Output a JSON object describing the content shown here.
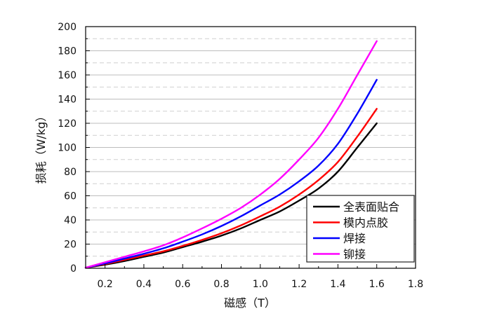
{
  "chart_data": {
    "type": "line",
    "title": "",
    "xlabel": "磁感（T）",
    "ylabel": "损耗（W/kg）",
    "xlim": [
      0.1,
      1.8
    ],
    "ylim": [
      0,
      200
    ],
    "x_ticks": [
      "0.2",
      "0.4",
      "0.6",
      "0.8",
      "1.0",
      "1.2",
      "1.4",
      "1.6",
      "1.8"
    ],
    "y_ticks": [
      "0",
      "20",
      "40",
      "60",
      "80",
      "100",
      "120",
      "140",
      "160",
      "180",
      "200"
    ],
    "grid": {
      "horizontal": true,
      "solid_major_every": 20,
      "dashed_minor_between": true,
      "vertical": false
    },
    "legend_position": "bottom-right",
    "series": [
      {
        "name": "全表面贴合",
        "color": "#000000",
        "x": [
          0.1,
          0.2,
          0.3,
          0.4,
          0.5,
          0.6,
          0.7,
          0.8,
          0.9,
          1.0,
          1.1,
          1.2,
          1.3,
          1.4,
          1.5,
          1.6
        ],
        "y": [
          0.5,
          3,
          6,
          9.5,
          13,
          17.5,
          22,
          27,
          33,
          40,
          47,
          56,
          66,
          80,
          100,
          120
        ]
      },
      {
        "name": "模内点胶",
        "color": "#ff0000",
        "x": [
          0.1,
          0.2,
          0.3,
          0.4,
          0.5,
          0.6,
          0.7,
          0.8,
          0.9,
          1.0,
          1.1,
          1.2,
          1.3,
          1.4,
          1.5,
          1.6
        ],
        "y": [
          0.5,
          3.5,
          7,
          10.5,
          14,
          18.5,
          23.5,
          29,
          35.5,
          43,
          51,
          61,
          73,
          88,
          109,
          132
        ]
      },
      {
        "name": "焊接",
        "color": "#0000ff",
        "x": [
          0.1,
          0.2,
          0.3,
          0.4,
          0.5,
          0.6,
          0.7,
          0.8,
          0.9,
          1.0,
          1.1,
          1.2,
          1.3,
          1.4,
          1.5,
          1.6
        ],
        "y": [
          0.5,
          4,
          8,
          12,
          16.5,
          22,
          28,
          35,
          43,
          52,
          61,
          72,
          85,
          103,
          128,
          156
        ]
      },
      {
        "name": "铆接",
        "color": "#ff00ff",
        "x": [
          0.1,
          0.2,
          0.3,
          0.4,
          0.5,
          0.6,
          0.7,
          0.8,
          0.9,
          1.0,
          1.1,
          1.2,
          1.3,
          1.4,
          1.5,
          1.6
        ],
        "y": [
          0.5,
          5,
          9.5,
          14,
          19,
          25.5,
          33,
          41,
          50,
          61,
          74,
          90,
          108,
          132,
          160,
          188
        ]
      }
    ]
  }
}
